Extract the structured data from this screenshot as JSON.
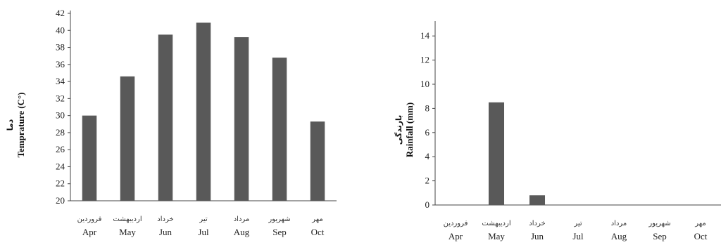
{
  "charts": {
    "temperature": {
      "ylabel": "Temprature (C°)",
      "ylabel_fa": "دما"
    },
    "rainfall": {
      "ylabel": "Rainfall (mm)",
      "ylabel_fa": "بارندگی"
    }
  },
  "chart_data": [
    {
      "type": "bar",
      "categories": [
        "Apr",
        "May",
        "Jun",
        "Jul",
        "Aug",
        "Sep",
        "Oct"
      ],
      "categories_fa": [
        "فروردین",
        "اردیبهشت",
        "خرداد",
        "تیر",
        "مرداد",
        "شهریور",
        "مهر"
      ],
      "values": [
        30.0,
        34.6,
        39.5,
        40.9,
        39.2,
        36.8,
        29.3
      ],
      "title": "",
      "xlabel": "",
      "ylabel": "Temprature (C°)",
      "ylim": [
        20,
        42
      ],
      "yticks": [
        20,
        22,
        24,
        26,
        28,
        30,
        32,
        34,
        36,
        38,
        40,
        42
      ],
      "grid": false,
      "bar_color": "#595959"
    },
    {
      "type": "bar",
      "categories": [
        "Apr",
        "May",
        "Jun",
        "Jul",
        "Aug",
        "Sep",
        "Oct"
      ],
      "categories_fa": [
        "فروردین",
        "اردیبهشت",
        "خرداد",
        "تیر",
        "مرداد",
        "شهریور",
        "مهر"
      ],
      "values": [
        0,
        8.5,
        0.8,
        0,
        0,
        0,
        0
      ],
      "title": "",
      "xlabel": "",
      "ylabel": "Rainfall (mm)",
      "ylim": [
        0,
        15
      ],
      "yticks": [
        0,
        2,
        4,
        6,
        8,
        10,
        12,
        14
      ],
      "grid": false,
      "bar_color": "#595959"
    }
  ]
}
